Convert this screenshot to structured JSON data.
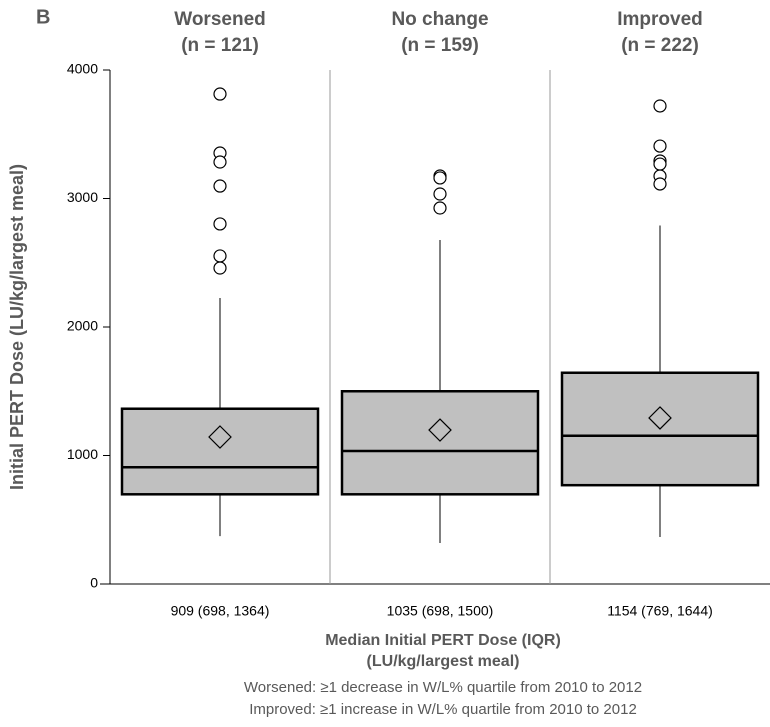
{
  "chart_data": {
    "type": "box",
    "panel_label": "B",
    "categories": [
      "Worsened",
      "No change",
      "Improved"
    ],
    "n_labels": [
      "(n = 121)",
      "(n = 159)",
      "(n = 222)"
    ],
    "summary_labels": [
      "909 (698, 1364)",
      "1035 (698, 1500)",
      "1154 (769, 1644)"
    ],
    "boxes": [
      {
        "whisker_low": 373,
        "q1": 698,
        "median": 909,
        "q3": 1364,
        "whisker_high": 2226,
        "mean": 1144,
        "outliers": [
          3813,
          3354,
          3284,
          3097,
          2802,
          2553,
          2459
        ]
      },
      {
        "whisker_low": 319,
        "q1": 698,
        "median": 1035,
        "q3": 1500,
        "whisker_high": 2677,
        "mean": 1198,
        "outliers": [
          3175,
          3160,
          3035,
          2926
        ]
      },
      {
        "whisker_low": 366,
        "q1": 769,
        "median": 1154,
        "q3": 1644,
        "whisker_high": 2790,
        "mean": 1292,
        "outliers": [
          3720,
          3408,
          3292,
          3268,
          3175,
          3113
        ]
      }
    ],
    "color": "#c0c0c0",
    "ylim": [
      0,
      4000
    ],
    "yticks": [
      0,
      1000,
      2000,
      3000,
      4000
    ],
    "y_label": "Initial PERT Dose (LU/kg/largest meal)",
    "x_label": [
      "Median Initial PERT Dose (IQR)",
      "(LU/kg/largest meal)"
    ],
    "notes": [
      "Worsened: ≥1 decrease in W/L% quartile from 2010 to 2012",
      "Improved: ≥1 increase in W/L% quartile from 2010 to 2012"
    ]
  }
}
